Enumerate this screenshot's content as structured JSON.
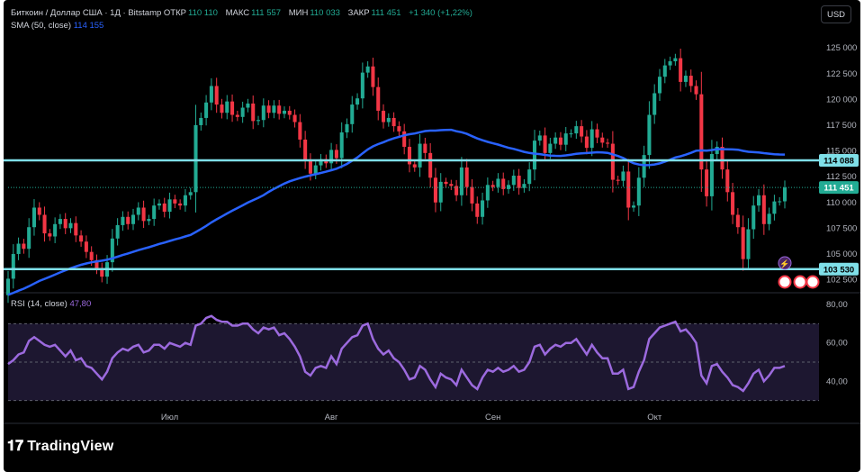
{
  "header": {
    "symbol_title": "Биткоин / Доллар США · 1Д · Bitstamp",
    "ohlc": [
      {
        "label": "ОТКР",
        "value": "110 110"
      },
      {
        "label": "МАКС",
        "value": "111 557"
      },
      {
        "label": "МИН",
        "value": "110 033"
      },
      {
        "label": "ЗАКР",
        "value": "111 451"
      },
      {
        "label": "",
        "value": "+1 340 (+1,22%)"
      }
    ],
    "sma_label": "SMA (50, close)",
    "sma_value": "114 155",
    "rsi_label": "RSI (14, close)",
    "rsi_value": "47,80",
    "currency_button": "USD"
  },
  "brand": {
    "name": "TradingView",
    "logo_icon": "tradingview-logo-icon"
  },
  "colors": {
    "up": "#22ab94",
    "down": "#f23645",
    "sma": "#2962ff",
    "rsi": "#9c6ade",
    "level": "#7fdfe8"
  },
  "chart_data": [
    {
      "type": "candlestick",
      "title": "Биткоин / Доллар США · 1Д · Bitstamp",
      "ylim": [
        101500,
        126500
      ],
      "y_ticks": [
        102500,
        105000,
        107500,
        110000,
        112500,
        115000,
        117500,
        120000,
        122500,
        125000
      ],
      "y_tick_labels": [
        "102 500",
        "105 000",
        "107 500",
        "110 000",
        "112 500",
        "115 000",
        "117 500",
        "120 000",
        "122 500",
        "125 000"
      ],
      "x_tick_labels": [
        "Июл",
        "Авг",
        "Сен",
        "Окт"
      ],
      "horizontal_levels": [
        {
          "value": 114088,
          "label": "114 088"
        },
        {
          "value": 103530,
          "label": "103 530"
        }
      ],
      "last_price": {
        "value": 111451,
        "label": "111 451"
      },
      "series": [
        {
          "name": "Биткоин / Доллар США",
          "close": [
            102600,
            105000,
            106000,
            105500,
            107600,
            109500,
            108800,
            107000,
            106700,
            107900,
            108400,
            107500,
            108000,
            106800,
            106200,
            105200,
            104400,
            103600,
            102800,
            104200,
            106500,
            107800,
            108600,
            107900,
            108800,
            109500,
            108200,
            108400,
            109700,
            109900,
            109100,
            110300,
            109900,
            109700,
            110700,
            111000,
            117500,
            118200,
            119700,
            121300,
            119500,
            118700,
            119800,
            118500,
            118300,
            119200,
            119600,
            117900,
            118000,
            119400,
            118700,
            119400,
            118600,
            118900,
            118500,
            117800,
            116100,
            114100,
            112800,
            113600,
            114200,
            113800,
            115100,
            114300,
            116800,
            117600,
            119500,
            120100,
            122600,
            123200,
            121200,
            118900,
            117800,
            118200,
            117400,
            116900,
            115400,
            113700,
            113400,
            115700,
            114800,
            112400,
            110000,
            112000,
            111800,
            111600,
            110700,
            113400,
            111500,
            109900,
            108600,
            110200,
            111700,
            111500,
            112300,
            111300,
            111700,
            112600,
            111400,
            111800,
            113200,
            116000,
            116500,
            114800,
            115700,
            116300,
            115600,
            116700,
            116700,
            117400,
            116400,
            115300,
            117100,
            116300,
            115800,
            115700,
            112200,
            112100,
            113000,
            109500,
            109700,
            112400,
            114600,
            118500,
            120600,
            122200,
            123300,
            123700,
            124000,
            121700,
            122300,
            121300,
            120500,
            113200,
            110600,
            114700,
            115400,
            113200,
            111000,
            108800,
            107600,
            104500,
            107400,
            109700,
            110700,
            107900,
            108900,
            110100,
            110110,
            111451
          ]
        }
      ]
    },
    {
      "type": "line",
      "title": "RSI (14, close)",
      "ylim": [
        20,
        80
      ],
      "y_ticks": [
        40,
        60,
        80
      ],
      "y_tick_labels": [
        "40,00",
        "60,00",
        "80,00"
      ],
      "band": [
        30,
        70
      ],
      "series": [
        {
          "name": "RSI (14, close)",
          "values": [
            49,
            51,
            54,
            55,
            61,
            63,
            61,
            59,
            58,
            59,
            56,
            53,
            56,
            51,
            52,
            48,
            47,
            44,
            41,
            45,
            52,
            55,
            57,
            56,
            58,
            59,
            55,
            56,
            59,
            59,
            57,
            60,
            59,
            58,
            60,
            59,
            69,
            70,
            73,
            74,
            72,
            71,
            71,
            69,
            69,
            70,
            70,
            67,
            65,
            68,
            67,
            68,
            64,
            65,
            62,
            58,
            53,
            45,
            43,
            47,
            48,
            47,
            53,
            49,
            57,
            60,
            63,
            64,
            69,
            70,
            62,
            57,
            54,
            56,
            52,
            50,
            46,
            41,
            42,
            48,
            46,
            41,
            37,
            44,
            42,
            41,
            38,
            46,
            42,
            38,
            36,
            42,
            46,
            45,
            47,
            45,
            46,
            48,
            45,
            46,
            50,
            58,
            59,
            54,
            57,
            59,
            58,
            60,
            60,
            62,
            58,
            54,
            59,
            55,
            52,
            52,
            44,
            44,
            46,
            36,
            37,
            45,
            51,
            62,
            65,
            68,
            69,
            70,
            71,
            66,
            67,
            64,
            60,
            43,
            39,
            48,
            49,
            45,
            42,
            38,
            37,
            35,
            39,
            44,
            46,
            40,
            43,
            47,
            47,
            48
          ]
        }
      ]
    }
  ]
}
